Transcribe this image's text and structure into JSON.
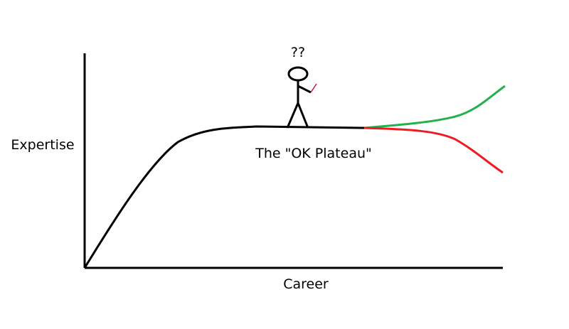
{
  "labels": {
    "y_axis": "Expertise",
    "x_axis": "Career",
    "plateau": "The \"OK Plateau\"",
    "question": "??"
  },
  "colors": {
    "axis": "#000000",
    "base_curve": "#000000",
    "improve_curve": "#22b14c",
    "decline_curve": "#ed1c24",
    "figure": "#000000",
    "figure_hand_mark": "#c2185b"
  },
  "icons": {
    "figure": "stick-figure-icon"
  }
}
